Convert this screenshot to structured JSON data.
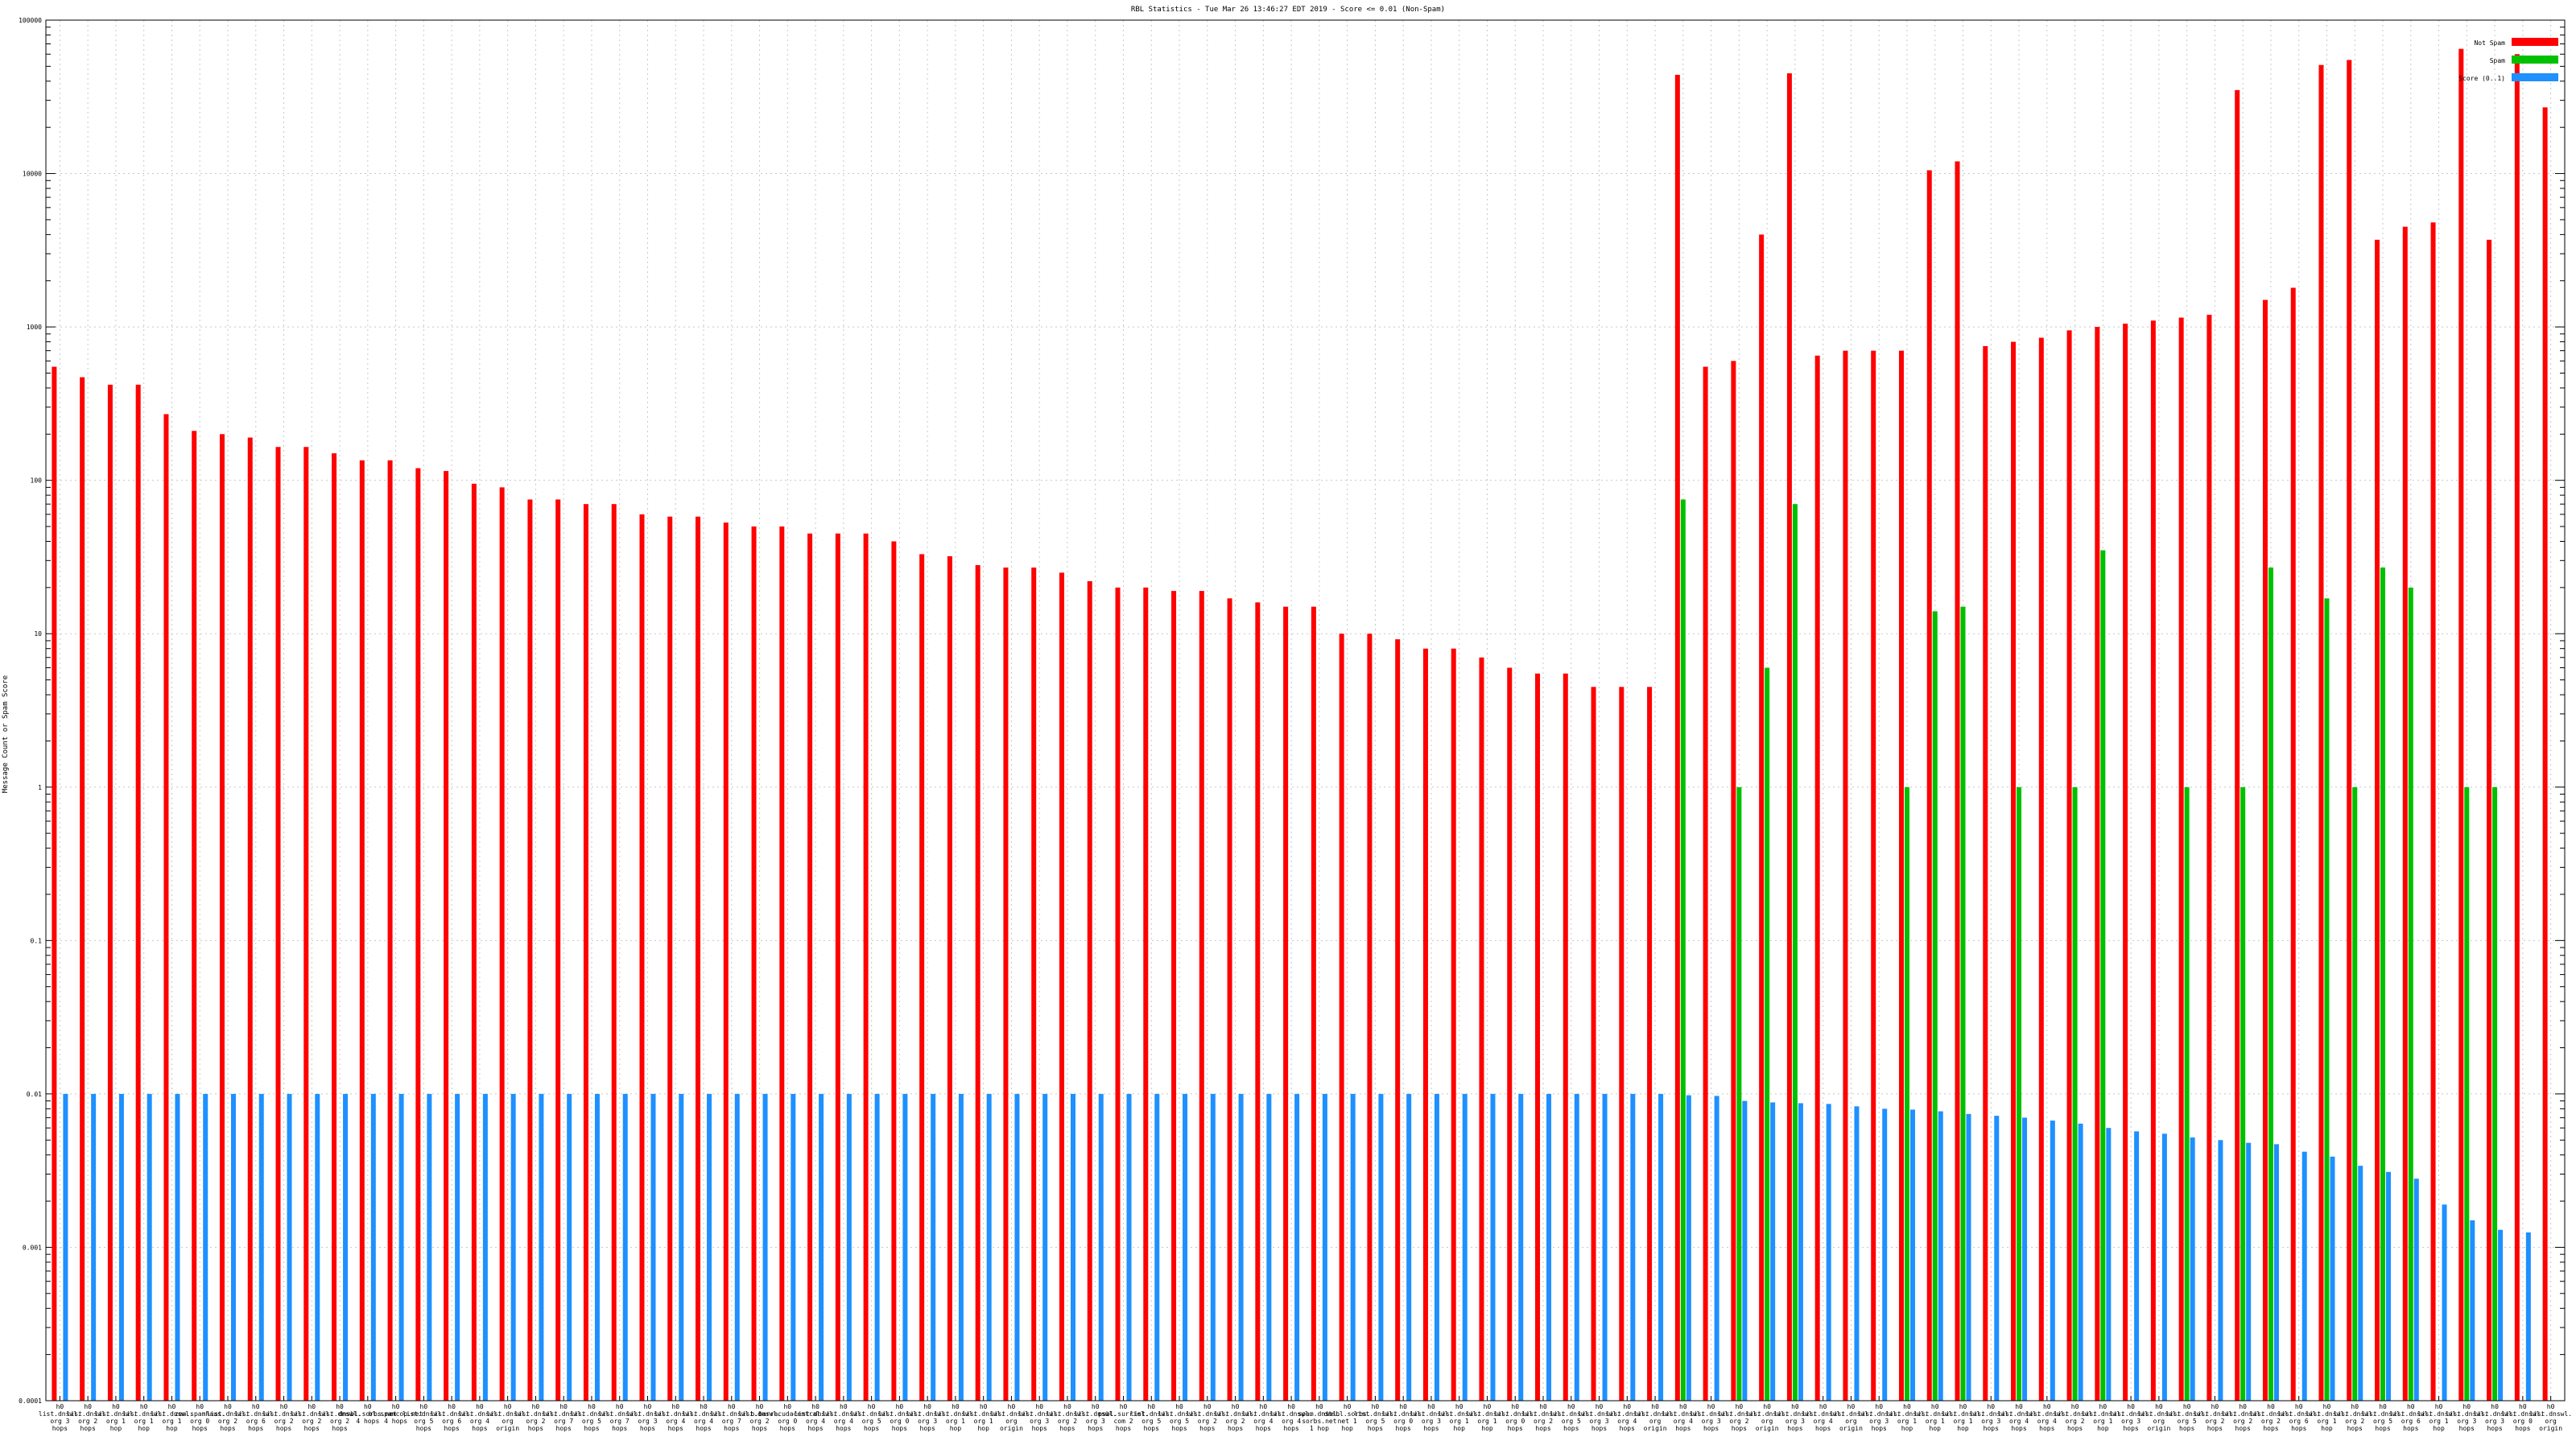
{
  "chart_data": {
    "type": "bar",
    "title": "RBL Statistics - Tue Mar 26 13:46:27 EDT 2019 - Score <= 0.01 (Non-Spam)",
    "ylabel": "Message Count or Spam Score",
    "xlabel": "",
    "yscale": "log",
    "ylim": [
      0.0001,
      100000
    ],
    "yticks": [
      "0.0001",
      "0.001",
      "0.01",
      "0.1",
      "1",
      "10",
      "100",
      "1000",
      "10000",
      "100000"
    ],
    "grid": true,
    "legend_position": "top-right",
    "categories": [
      "h0 list.dnswl. org 3 hops",
      "h0 list.dnswl. org 2 hops",
      "h0 list.dnswl. org 1 hop",
      "h0 list.dnswl. org 1 hop",
      "h0 list.dnswl. org 1 hop",
      "h0 zen.spamhaus. org 0 hops",
      "h0 list.dnswl. org 2 hops",
      "h0 list.dnswl. org 6 hops",
      "h0 list.dnswl. org 2 hops",
      "h0 list.dnswl. org 2 hops",
      "h0 list.dnswl. org 2 hops",
      "h0 dnsbl.sorbs.net 4 hops",
      "h0 bl.spamcop.net 4 hops",
      "h0 list.dnswl. org 5 hops",
      "h0 list.dnswl. org 6 hops",
      "h0 list.dnswl. org 4 hops",
      "h0 list.dnswl. org origin",
      "h0 list.dnswl. org 2 hops",
      "h0 list.dnswl. org 7 hops",
      "h0 list.dnswl. org 5 hops",
      "h0 list.dnswl. org 7 hops",
      "h0 list.dnswl. org 3 hops",
      "h0 list.dnswl. org 4 hops",
      "h0 list.dnswl. org 4 hops",
      "h0 list.dnswl. org 7 hops",
      "h0 list.dnswl. org 2 hops",
      "h0 b.barracudacentral. org 0 hops",
      "h0 list.dnswl. org 4 hops",
      "h0 list.dnswl. org 4 hops",
      "h0 list.dnswl. org 5 hops",
      "h0 list.dnswl. org 0 hops",
      "h0 list.dnswl. org 3 hops",
      "h0 list.dnswl. org 1 hop",
      "h0 list.dnswl. org 1 hop",
      "h0 list.dnswl. org origin",
      "h0 list.dnswl. org 3 hops",
      "h0 list.dnswl. org 2 hops",
      "h0 list.dnswl. org 3 hops",
      "h0 psbl.surriel. com 2 hops",
      "h0 list.dnswl. org 5 hops",
      "h0 list.dnswl. org 5 hops",
      "h0 list.dnswl. org 2 hops",
      "h0 list.dnswl. org 2 hops",
      "h0 list.dnswl. org 4 hops",
      "h0 list.dnswl. org 4 hops",
      "h0 spam.dnsbl. sorbs.net 1 hop",
      "h0 dnsbl.sorbs. net 1 hop",
      "h0 list.dnswl. org 5 hops",
      "h0 list.dnswl. org 0 hops",
      "h0 list.dnswl. org 3 hops",
      "h0 list.dnswl. org 1 hop",
      "h0 list.dnswl. org 1 hop",
      "h0 list.dnswl. org 0 hops",
      "h0 list.dnswl. org 2 hops",
      "h0 list.dnswl. org 5 hops",
      "h0 list.dnswl. org 3 hops",
      "h0 list.dnswl. org 4 hops",
      "h0 list.dnswl. org origin",
      "h0 list.dnswl. org 4 hops",
      "h0 list.dnswl. org 3 hops",
      "h0 list.dnswl. org 2 hops",
      "h0 list.dnswl. org origin",
      "h0 list.dnswl. org 3 hops",
      "h0 list.dnswl. org 4 hops",
      "h0 list.dnswl. org origin",
      "h0 list.dnswl. org 3 hops",
      "h0 list.dnswl. org 1 hop",
      "h0 list.dnswl. org 1 hop",
      "h0 list.dnswl. org 1 hop",
      "h0 list.dnswl. org 3 hops",
      "h0 list.dnswl. org 4 hops",
      "h0 list.dnswl. org 4 hops",
      "h0 list.dnswl. org 2 hops",
      "h0 list.dnswl. org 1 hop",
      "h0 list.dnswl. org 3 hops",
      "h0 list.dnswl. org origin",
      "h0 list.dnswl. org 5 hops",
      "h0 list.dnswl. org 2 hops",
      "h0 list.dnswl. org 2 hops",
      "h0 list.dnswl. org 2 hops",
      "h0 list.dnswl. org 6 hops",
      "h0 list.dnswl. org 1 hop",
      "h0 list.dnswl. org 2 hops",
      "h0 list.dnswl. org 5 hops",
      "h0 list.dnswl. org 6 hops",
      "h0 list.dnswl. org 1 hop",
      "h0 list.dnswl. org 3 hops",
      "h0 list.dnswl. org 3 hops",
      "h0 list.dnswl. org 0 hops",
      "h0 list.dnswl. org origin"
    ],
    "series": [
      {
        "name": "Not Spam",
        "color": "#ff0000",
        "values": [
          550,
          470,
          420,
          420,
          270,
          210,
          200,
          190,
          165,
          165,
          150,
          135,
          135,
          120,
          115,
          95,
          90,
          75,
          75,
          70,
          70,
          60,
          58,
          58,
          53,
          50,
          50,
          45,
          45,
          45,
          40,
          33,
          32,
          28,
          27,
          27,
          25,
          22,
          20,
          20,
          19,
          19,
          17,
          16,
          15,
          15,
          10,
          10,
          9.2,
          8,
          8,
          7,
          6,
          5.5,
          5.5,
          4.5,
          4.5,
          4.5,
          44000,
          550,
          600,
          4000,
          45000,
          650,
          700,
          700,
          700,
          10500,
          12000,
          750,
          800,
          850,
          950,
          1000,
          1050,
          1100,
          1150,
          1200,
          35000,
          1500,
          1800,
          51000,
          55000,
          3700,
          4500,
          4800,
          65000,
          3700,
          60000,
          27000
        ]
      },
      {
        "name": "Spam",
        "color": "#00c000",
        "values": [
          null,
          null,
          null,
          null,
          null,
          null,
          null,
          null,
          null,
          null,
          null,
          null,
          null,
          null,
          null,
          null,
          null,
          null,
          null,
          null,
          null,
          null,
          null,
          null,
          null,
          null,
          null,
          null,
          null,
          null,
          null,
          null,
          null,
          null,
          null,
          null,
          null,
          null,
          null,
          null,
          null,
          null,
          null,
          null,
          null,
          null,
          null,
          null,
          null,
          null,
          null,
          null,
          null,
          null,
          null,
          null,
          null,
          null,
          75,
          null,
          1,
          6,
          70,
          null,
          null,
          null,
          1,
          14,
          15,
          null,
          1,
          null,
          1,
          35,
          null,
          null,
          1,
          null,
          1,
          27,
          null,
          17,
          1,
          27,
          20,
          null,
          1,
          1,
          null,
          null
        ]
      },
      {
        "name": "Score (0..1)",
        "color": "#1e90ff",
        "values": [
          0.01,
          0.01,
          0.01,
          0.01,
          0.01,
          0.01,
          0.01,
          0.01,
          0.01,
          0.01,
          0.01,
          0.01,
          0.01,
          0.01,
          0.01,
          0.01,
          0.01,
          0.01,
          0.01,
          0.01,
          0.01,
          0.01,
          0.01,
          0.01,
          0.01,
          0.01,
          0.01,
          0.01,
          0.01,
          0.01,
          0.01,
          0.01,
          0.01,
          0.01,
          0.01,
          0.01,
          0.01,
          0.01,
          0.01,
          0.01,
          0.01,
          0.01,
          0.01,
          0.01,
          0.01,
          0.01,
          0.01,
          0.01,
          0.01,
          0.01,
          0.01,
          0.01,
          0.01,
          0.01,
          0.01,
          0.01,
          0.01,
          0.01,
          0.0098,
          0.0097,
          0.009,
          0.0088,
          0.0087,
          0.0086,
          0.0083,
          0.008,
          0.0079,
          0.0077,
          0.0074,
          0.0072,
          0.007,
          0.0067,
          0.0064,
          0.006,
          0.0057,
          0.0055,
          0.0052,
          0.005,
          0.0048,
          0.0047,
          0.0042,
          0.0039,
          0.0034,
          0.0031,
          0.0028,
          0.0019,
          0.0015,
          0.0013,
          0.00125,
          null
        ]
      }
    ]
  }
}
